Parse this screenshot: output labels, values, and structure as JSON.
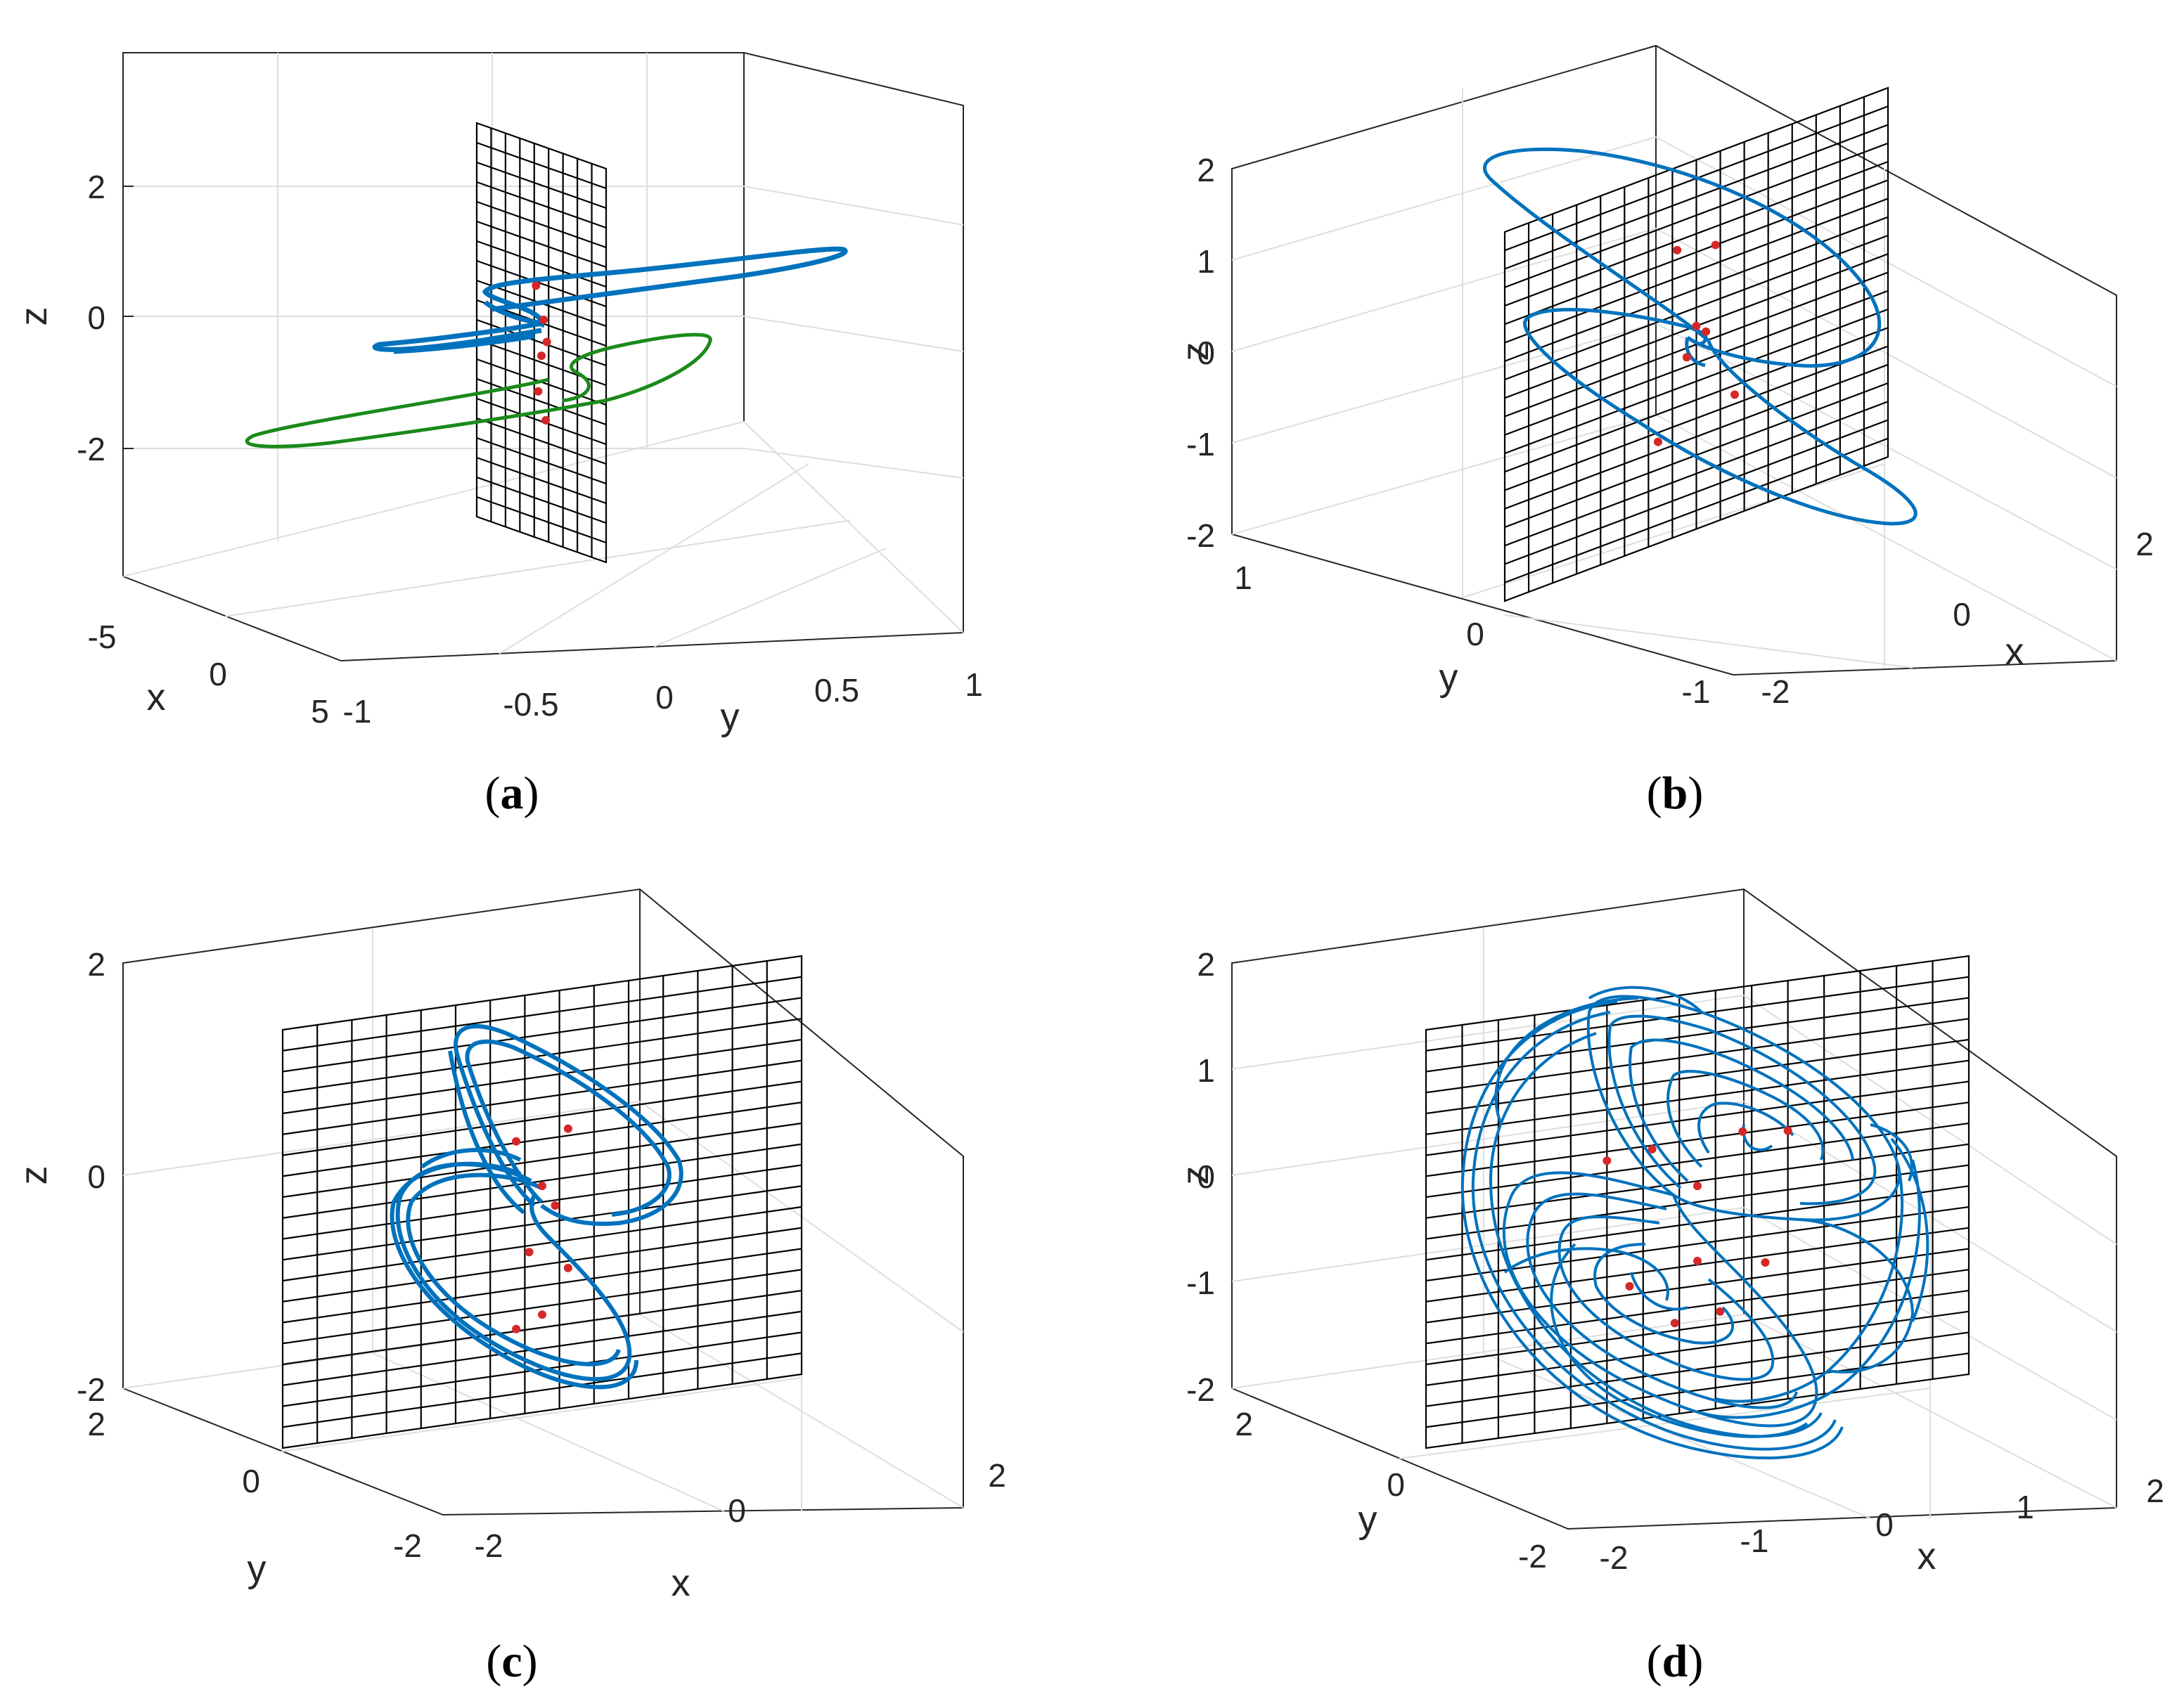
{
  "colors": {
    "trajectory_blue": "#0072BD",
    "trajectory_green": "#1A8A1A",
    "section_points": "#D62728",
    "plane_grid": "#000000",
    "axis_box": "#262626",
    "gridlines": "#DEDEDE"
  },
  "chart_data": [
    {
      "panel": "a",
      "caption": "a",
      "type": "line3d",
      "xlabel": "x",
      "ylabel": "y",
      "zlabel": "z",
      "xticks": [
        "-5",
        "0",
        "5"
      ],
      "yticks": [
        "-1",
        "-0.5",
        "0",
        "0.5",
        "1"
      ],
      "zticks": [
        "2",
        "0",
        "-2"
      ],
      "xlim": [
        -5,
        5
      ],
      "ylim": [
        -1,
        1
      ],
      "zlim": [
        -4,
        4
      ],
      "series": [
        {
          "color": "blue",
          "x": [
            0.0,
            4.6,
            3.2,
            0.0,
            -3.8,
            -4.5,
            -2.0,
            0.0,
            0.3,
            0.0
          ],
          "y": [
            0.02,
            0.85,
            0.7,
            0.05,
            -0.7,
            -0.85,
            -0.5,
            -0.2,
            0.0,
            0.02
          ],
          "z": [
            0.3,
            1.0,
            1.2,
            0.5,
            -0.6,
            -0.4,
            -0.1,
            0.2,
            0.5,
            0.3
          ]
        },
        {
          "color": "green",
          "x": [
            0.0,
            -4.6,
            -3.2,
            0.0,
            3.8,
            4.5,
            2.0,
            0.0,
            -0.3,
            0.0
          ],
          "y": [
            -0.02,
            -0.85,
            -0.7,
            -0.05,
            0.7,
            0.85,
            0.5,
            0.2,
            0.0,
            -0.02
          ],
          "z": [
            -1.2,
            -1.9,
            -2.1,
            -1.4,
            -0.3,
            -0.5,
            -0.8,
            -1.1,
            -1.4,
            -1.2
          ]
        }
      ],
      "section_points": {
        "x": [
          0,
          0,
          0,
          0,
          0,
          0
        ],
        "y": [
          -0.05,
          0.02,
          0.05,
          0.0,
          -0.03,
          0.04
        ],
        "z": [
          0.8,
          0.2,
          -0.2,
          -0.5,
          -1.2,
          -1.7
        ]
      }
    },
    {
      "panel": "b",
      "caption": "b",
      "type": "line3d",
      "xlabel": "x",
      "ylabel": "y",
      "zlabel": "z",
      "xticks": [
        "-2",
        "0",
        "2"
      ],
      "yticks": [
        "1",
        "0",
        "-1"
      ],
      "zticks": [
        "2",
        "1",
        "0",
        "-1",
        "-2"
      ],
      "xlim": [
        -2,
        2
      ],
      "ylim": [
        -1,
        1
      ],
      "zlim": [
        -2,
        2
      ],
      "series": [
        {
          "color": "blue",
          "x": [
            0.0,
            1.5,
            1.8,
            0.8,
            -1.2,
            -2.0,
            -1.5,
            -0.3,
            0.0,
            0.4,
            1.2,
            1.8,
            1.4,
            0.5,
            0.0
          ],
          "y": [
            0.0,
            0.4,
            0.1,
            -0.4,
            -0.2,
            0.4,
            0.8,
            0.3,
            0.0,
            -0.3,
            -0.4,
            0.0,
            0.3,
            0.1,
            0.0
          ],
          "z": [
            0.0,
            0.5,
            1.2,
            1.6,
            1.9,
            1.6,
            0.9,
            0.3,
            0.0,
            -0.3,
            -0.8,
            -1.6,
            -1.9,
            -1.0,
            0.0
          ]
        }
      ],
      "section_points": {
        "x": [
          0,
          0,
          0,
          0,
          0,
          0,
          0
        ],
        "y": [
          0.1,
          -0.1,
          0.0,
          0.05,
          -0.05,
          0.2,
          -0.2
        ],
        "z": [
          1.0,
          1.1,
          0.2,
          0.1,
          -0.1,
          -0.7,
          -0.9
        ]
      }
    },
    {
      "panel": "c",
      "caption": "c",
      "type": "line3d",
      "xlabel": "x",
      "ylabel": "y",
      "zlabel": "z",
      "xticks": [
        "-2",
        "0",
        "2"
      ],
      "yticks": [
        "2",
        "0",
        "-2"
      ],
      "zticks": [
        "2",
        "0",
        "-2"
      ],
      "xlim": [
        -2,
        2
      ],
      "ylim": [
        -2,
        2
      ],
      "zlim": [
        -2,
        2
      ],
      "series": [
        {
          "color": "blue",
          "x": [
            0.0,
            -0.3,
            0.2,
            0.9,
            1.1,
            0.6,
            0.0,
            -0.6,
            -1.1,
            -0.9,
            -0.2,
            0.3,
            0.0
          ],
          "y": [
            0.0,
            0.3,
            0.5,
            0.5,
            0.2,
            -0.1,
            0.0,
            0.1,
            -0.2,
            -0.5,
            -0.5,
            -0.3,
            0.0
          ],
          "z": [
            0.0,
            0.9,
            1.4,
            1.2,
            0.5,
            0.0,
            -0.2,
            -0.5,
            -1.2,
            -1.5,
            -1.1,
            -0.6,
            0.0
          ]
        }
      ],
      "section_points": {
        "x": [
          0,
          0,
          0,
          0,
          0,
          0,
          0,
          0
        ],
        "y": [
          0.1,
          -0.1,
          0.0,
          0.05,
          -0.05,
          0.1,
          0.0,
          -0.1
        ],
        "z": [
          0.7,
          0.65,
          0.2,
          0.0,
          -0.4,
          -0.6,
          -1.0,
          -1.1
        ]
      }
    },
    {
      "panel": "d",
      "caption": "d",
      "type": "line3d",
      "xlabel": "x",
      "ylabel": "y",
      "zlabel": "z",
      "xticks": [
        "-2",
        "-1",
        "0",
        "1",
        "2"
      ],
      "yticks": [
        "2",
        "0",
        "-2"
      ],
      "zticks": [
        "2",
        "1",
        "0",
        "-1",
        "-2"
      ],
      "xlim": [
        -2,
        2
      ],
      "ylim": [
        -2,
        2
      ],
      "zlim": [
        -2,
        2
      ],
      "series": [
        {
          "color": "blue",
          "x": [
            0.0,
            -0.6,
            0.2,
            1.1,
            1.4,
            0.8,
            0.0,
            -0.8,
            -1.4,
            -1.2,
            -0.2,
            0.5,
            0.0
          ],
          "y": [
            0.0,
            0.3,
            0.6,
            0.5,
            0.1,
            -0.2,
            0.0,
            0.2,
            -0.1,
            -0.5,
            -0.6,
            -0.3,
            0.0
          ],
          "z": [
            0.0,
            1.0,
            1.4,
            1.2,
            0.5,
            -0.1,
            -0.3,
            -0.1,
            -0.9,
            -1.5,
            -1.6,
            -0.9,
            0.0
          ]
        }
      ],
      "section_points": {
        "x": [
          0,
          0,
          0,
          0,
          0,
          0,
          0,
          0,
          0,
          0
        ],
        "y": [
          0.2,
          -0.2,
          0.4,
          -0.4,
          0.0,
          0.3,
          -0.3,
          0.1,
          -0.1,
          0.0
        ],
        "z": [
          0.65,
          0.6,
          0.6,
          0.55,
          0.2,
          -0.6,
          -0.65,
          -1.0,
          -1.05,
          -0.5
        ]
      }
    }
  ]
}
